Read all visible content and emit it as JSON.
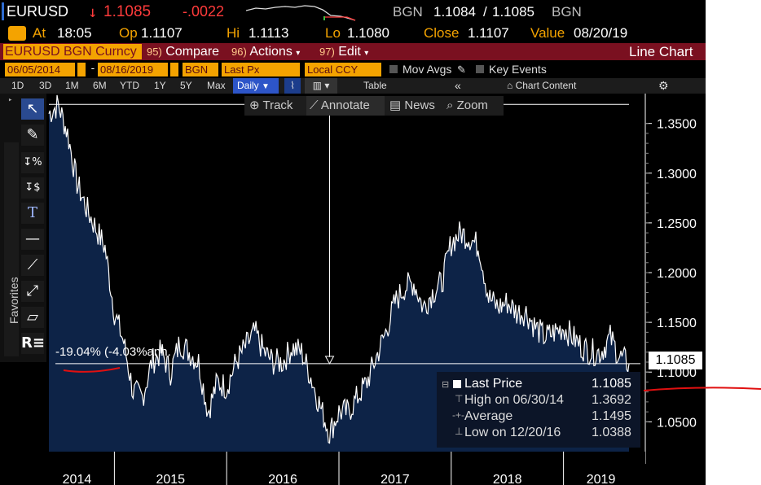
{
  "header": {
    "ticker": "EURUSD",
    "arrow": "↓",
    "last": "1.1085",
    "change": "-.0022",
    "source": "BGN",
    "bid": "1.1084",
    "sep": "/",
    "ask": "1.1085",
    "source2": "BGN",
    "at_label": "At",
    "time": "18:05",
    "op_label": "Op",
    "open": "1.1107",
    "hi_label": "Hi",
    "high": "1.1113",
    "lo_label": "Lo",
    "low": "1.1080",
    "close_label": "Close",
    "close": "1.1107",
    "value_label": "Value",
    "value_date": "08/20/19"
  },
  "function_bar": {
    "security": "EURUSD BGN Curncy",
    "compare_num": "95)",
    "compare": "Compare",
    "actions_num": "96)",
    "actions": "Actions",
    "edit_num": "97)",
    "edit": "Edit",
    "title": "Line Chart"
  },
  "controls": {
    "start_date": "06/05/2014",
    "end_date": "08/16/2019",
    "source": "BGN",
    "field": "Last Px",
    "currency": "Local CCY",
    "mov_avgs": "Mov Avgs",
    "key_events": "Key Events"
  },
  "periods": [
    "1D",
    "3D",
    "1M",
    "6M",
    "YTD",
    "1Y",
    "5Y",
    "Max"
  ],
  "frequency": "Daily",
  "table_label": "Table",
  "chart_content_label": "Chart Content",
  "chart_tools": {
    "track": "Track",
    "annotate": "Annotate",
    "news": "News",
    "zoom": "Zoom"
  },
  "favorites_label": "Favorites",
  "annotation_text": "-19.04% (-4.03%ann.",
  "last_badge": "1.1085",
  "legend": {
    "last_label": "Last Price",
    "last_value": "1.1085",
    "high_label": "High on 06/30/14",
    "high_value": "1.3692",
    "avg_label": "Average",
    "avg_value": "1.1495",
    "low_label": "Low on 12/20/16",
    "low_value": "1.0388"
  },
  "chart_data": {
    "type": "area",
    "x": [
      "2014-06",
      "2014-07",
      "2014-08",
      "2014-09",
      "2014-10",
      "2014-11",
      "2014-12",
      "2015-01",
      "2015-02",
      "2015-03",
      "2015-04",
      "2015-05",
      "2015-06",
      "2015-07",
      "2015-08",
      "2015-09",
      "2015-10",
      "2015-11",
      "2015-12",
      "2016-01",
      "2016-02",
      "2016-03",
      "2016-04",
      "2016-05",
      "2016-06",
      "2016-07",
      "2016-08",
      "2016-09",
      "2016-10",
      "2016-11",
      "2016-12",
      "2017-01",
      "2017-02",
      "2017-03",
      "2017-04",
      "2017-05",
      "2017-06",
      "2017-07",
      "2017-08",
      "2017-09",
      "2017-10",
      "2017-11",
      "2017-12",
      "2018-01",
      "2018-02",
      "2018-03",
      "2018-04",
      "2018-05",
      "2018-06",
      "2018-07",
      "2018-08",
      "2018-09",
      "2018-10",
      "2018-11",
      "2018-12",
      "2019-01",
      "2019-02",
      "2019-03",
      "2019-04",
      "2019-05",
      "2019-06",
      "2019-07",
      "2019-08"
    ],
    "values": [
      1.36,
      1.369,
      1.34,
      1.29,
      1.265,
      1.245,
      1.225,
      1.16,
      1.13,
      1.08,
      1.075,
      1.11,
      1.12,
      1.1,
      1.13,
      1.12,
      1.11,
      1.06,
      1.09,
      1.085,
      1.11,
      1.125,
      1.14,
      1.12,
      1.11,
      1.11,
      1.125,
      1.12,
      1.095,
      1.065,
      1.039,
      1.06,
      1.06,
      1.075,
      1.09,
      1.115,
      1.14,
      1.17,
      1.185,
      1.19,
      1.165,
      1.18,
      1.19,
      1.23,
      1.24,
      1.235,
      1.225,
      1.175,
      1.165,
      1.17,
      1.16,
      1.16,
      1.145,
      1.135,
      1.14,
      1.145,
      1.135,
      1.125,
      1.12,
      1.12,
      1.135,
      1.115,
      1.1085
    ],
    "ylim": [
      1.02,
      1.38
    ],
    "yticks": [
      "1.3500",
      "1.3000",
      "1.2500",
      "1.2000",
      "1.1500",
      "1.1000",
      "1.0500"
    ],
    "xticks": [
      "2014",
      "2015",
      "2016",
      "2017",
      "2018",
      "2019"
    ],
    "reference_lines": [
      1.3692,
      1.1085
    ],
    "grid": false,
    "legend_placement": "bottom-right"
  },
  "colors": {
    "amber": "#f4a300",
    "function_bar": "#7a1020",
    "area_fill": "#0d2347",
    "line": "#ffffff",
    "down": "#ff3b3b"
  }
}
